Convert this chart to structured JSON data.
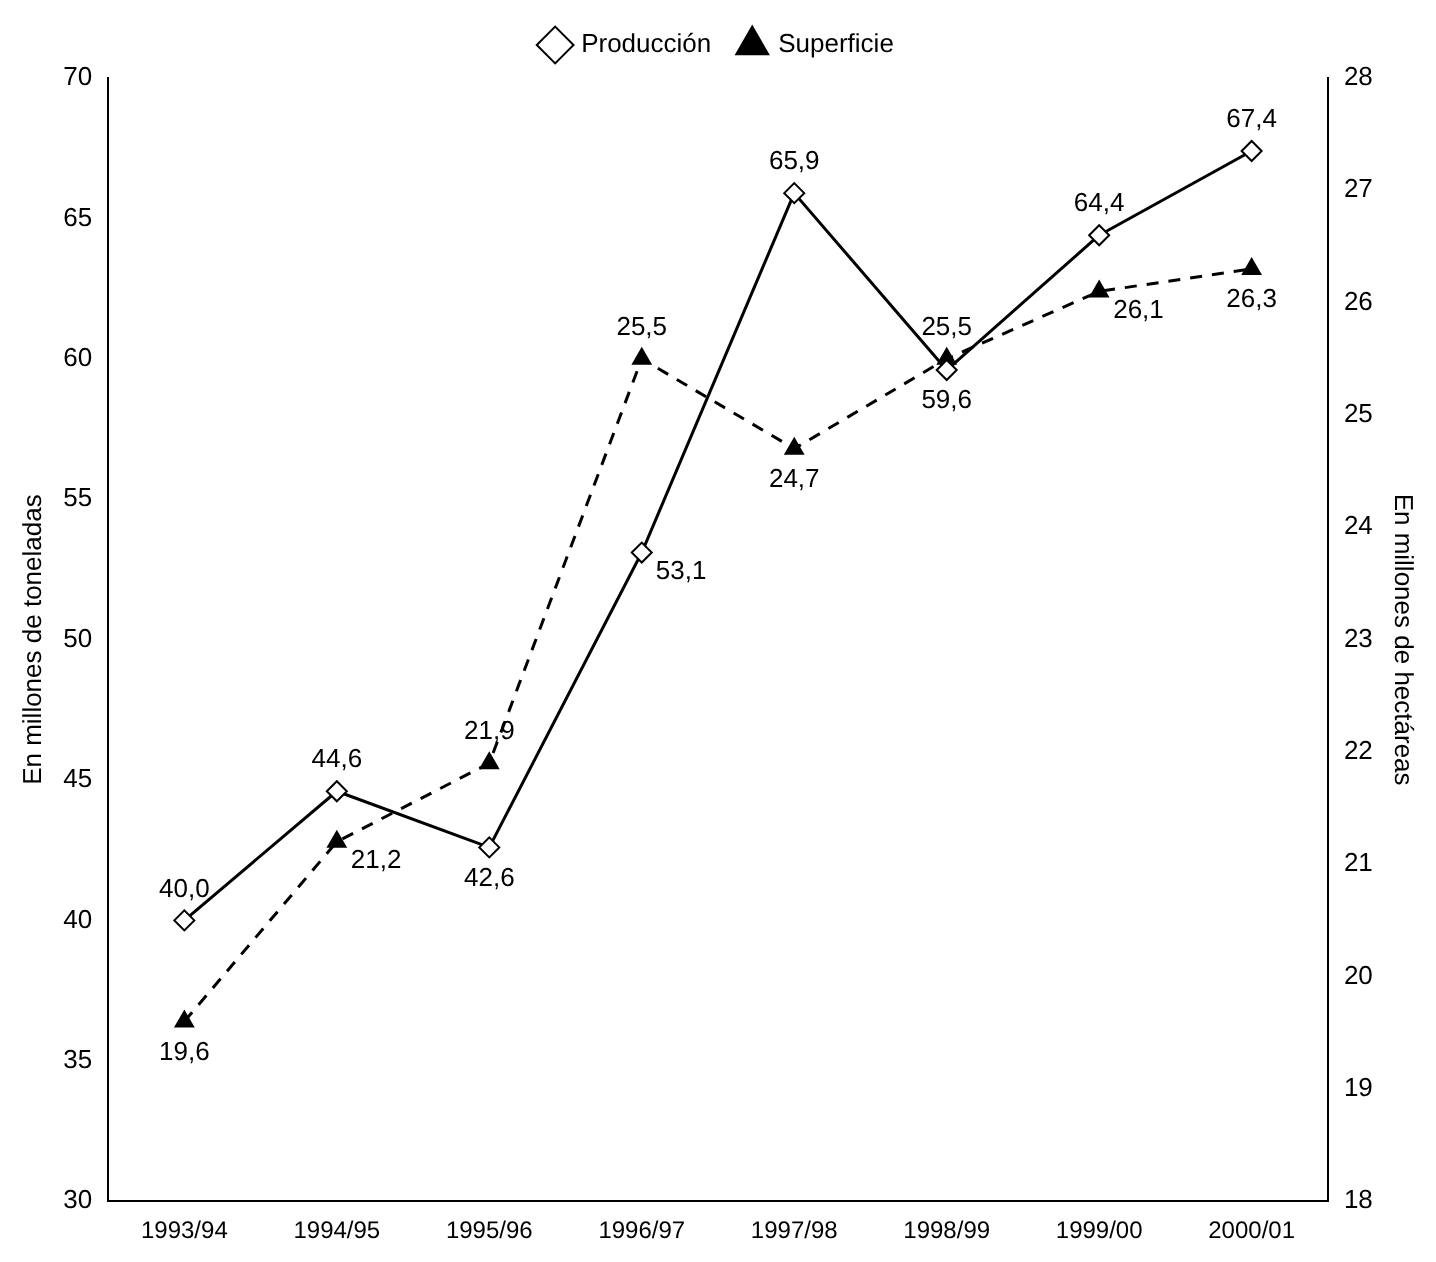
{
  "chart_data": {
    "type": "line",
    "categories": [
      "1993/94",
      "1994/95",
      "1995/96",
      "1996/97",
      "1997/98",
      "1998/99",
      "1999/00",
      "2000/01"
    ],
    "ylabel": "En millones de toneladas",
    "y2label": "En millones de hectáreas",
    "ylim": [
      30,
      70
    ],
    "yticks": [
      30,
      35,
      40,
      45,
      50,
      55,
      60,
      65,
      70
    ],
    "y2lim": [
      18,
      28
    ],
    "y2ticks": [
      18,
      19,
      20,
      21,
      22,
      23,
      24,
      25,
      26,
      27,
      28
    ],
    "legend": "top",
    "grid": false,
    "series": [
      {
        "name": "Producción",
        "color": "#000000",
        "marker": "diamond",
        "line_style": "solid",
        "values": [
          40.0,
          44.6,
          42.6,
          53.1,
          65.9,
          59.6,
          64.4,
          67.4
        ],
        "value_labels": [
          "40,0",
          "44,6",
          "42,6",
          "53,1",
          "65,9",
          "59,6",
          "64,4",
          "67,4"
        ]
      },
      {
        "name": "Superficie",
        "color": "#000000",
        "marker": "triangle",
        "line_style": "dashed",
        "axis": "y2",
        "values": [
          19.6,
          21.2,
          21.9,
          25.5,
          24.7,
          25.5,
          26.1,
          26.3
        ],
        "value_labels": [
          "19,6",
          "21,2",
          "21,9",
          "25,5",
          "24,7",
          "25,5",
          "26,1",
          "26,3"
        ]
      }
    ]
  }
}
